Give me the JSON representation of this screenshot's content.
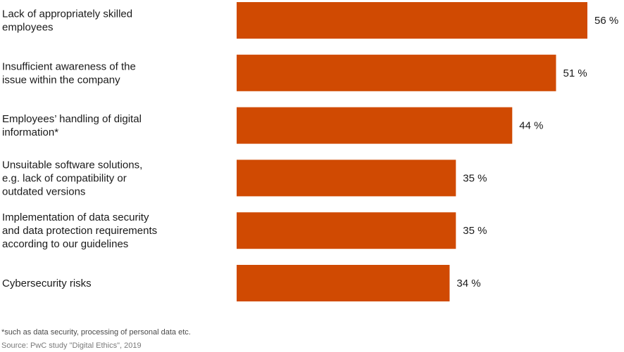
{
  "chart_data": {
    "type": "bar",
    "orientation": "horizontal",
    "categories": [
      [
        "Lack of appropriately skilled",
        "employees"
      ],
      [
        "Insufficient awareness of the",
        "issue within the company"
      ],
      [
        "Employees’ handling of digital",
        "information*"
      ],
      [
        "Unsuitable software solutions,",
        "e.g. lack of compatibility or",
        "outdated versions"
      ],
      [
        "Implementation of data security",
        "and data protection requirements",
        "according to our guidelines"
      ],
      [
        "Cybersecurity risks"
      ]
    ],
    "values": [
      56,
      51,
      44,
      35,
      35,
      34
    ],
    "value_labels": [
      "56 %",
      "51 %",
      "44 %",
      "35 %",
      "35 %",
      "34 %"
    ],
    "unit": "%",
    "xlim": [
      0,
      56
    ],
    "title": "",
    "xlabel": "",
    "ylabel": "",
    "grid": false,
    "bar_color": "#d04a02"
  },
  "footnote": "*such as data security, processing of personal data etc.",
  "source": "Source: PwC study \"Digital Ethics\", 2019"
}
